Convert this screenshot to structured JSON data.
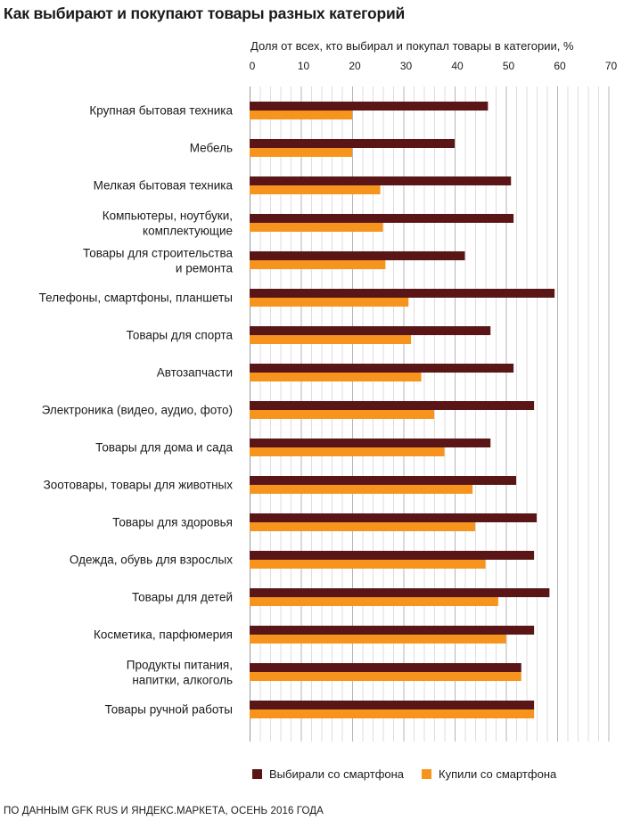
{
  "title": "Как выбирают и покупают товары разных категорий",
  "source": "ПО ДАННЫМ GFK RUS И ЯНДЕКС.МАРКЕТА, ОСЕНЬ 2016 ГОДА",
  "colors": {
    "chose": "#5a1616",
    "bought": "#f7941d",
    "grid": "#c8c8c8"
  },
  "chart_data": {
    "type": "bar",
    "orientation": "horizontal",
    "title": "Как выбирают и покупают товары разных категорий",
    "xlabel": "Доля от всех, кто выбирал и покупал товары в категории, %",
    "ylabel": "",
    "xlim": [
      0,
      70
    ],
    "xticks": [
      0,
      10,
      20,
      30,
      40,
      50,
      60,
      70
    ],
    "grid": true,
    "legend_position": "bottom",
    "categories": [
      [
        "Крупная бытовая техника"
      ],
      [
        "Мебель"
      ],
      [
        "Мелкая бытовая техника"
      ],
      [
        "Компьютеры, ноутбуки,",
        "комплектующие"
      ],
      [
        "Товары для строительства",
        "и ремонта"
      ],
      [
        "Телефоны, смартфоны, планшеты"
      ],
      [
        "Товары для спорта"
      ],
      [
        "Автозапчасти"
      ],
      [
        "Электроника (видео, аудио, фото)"
      ],
      [
        "Товары для дома и сада"
      ],
      [
        "Зоотовары, товары для животных"
      ],
      [
        "Товары для здоровья"
      ],
      [
        "Одежда, обувь для взрослых"
      ],
      [
        "Товары для детей"
      ],
      [
        "Косметика, парфюмерия"
      ],
      [
        "Продукты питания,",
        "напитки, алкоголь"
      ],
      [
        "Товары ручной работы"
      ]
    ],
    "series": [
      {
        "name": "Выбирали со смартфона",
        "values": [
          46.5,
          40,
          51,
          51.5,
          42,
          59.5,
          47,
          51.5,
          55.5,
          47,
          52,
          56,
          55.5,
          58.5,
          55.5,
          53,
          55.5
        ]
      },
      {
        "name": "Купили со смартфона",
        "values": [
          20,
          20,
          25.5,
          26,
          26.5,
          31,
          31.5,
          33.5,
          36,
          38,
          43.5,
          44,
          46,
          48.5,
          50,
          53,
          55.5
        ]
      }
    ]
  }
}
